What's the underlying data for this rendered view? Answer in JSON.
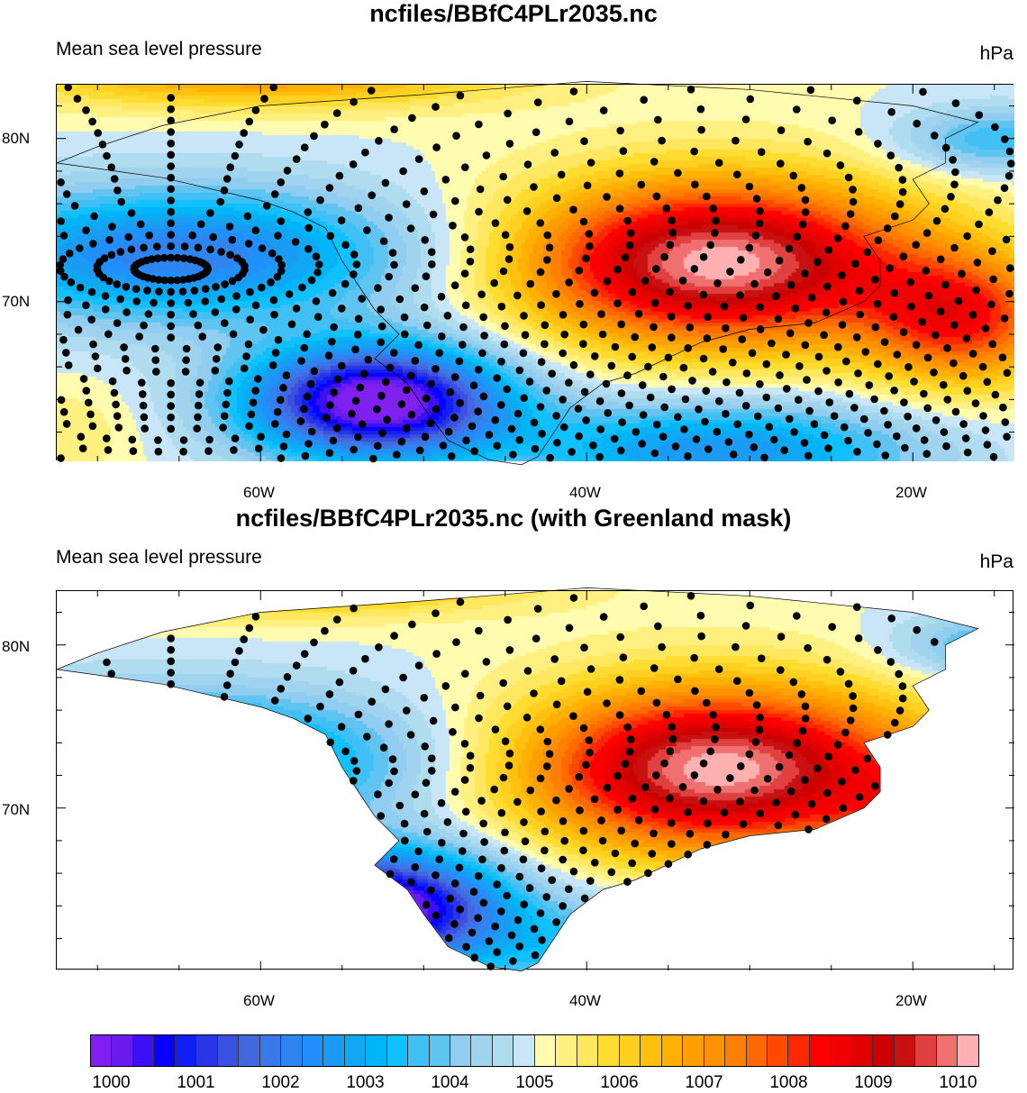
{
  "chart_data": [
    {
      "type": "heatmap",
      "title": "ncfiles/BBfC4PLr2035.nc",
      "left_string": "Mean sea level pressure",
      "right_string": "hPa",
      "x_ticks": [
        "60W",
        "40W",
        "20W"
      ],
      "y_ticks": [
        "80N",
        "70N"
      ],
      "lon_range": [
        -72.5,
        -13.8
      ],
      "lat_range": [
        60.3,
        83.3
      ],
      "features": {
        "low_center": {
          "lon": -53,
          "lat": 64,
          "value": 1000
        },
        "high_center": {
          "lon": -32,
          "lat": 72.5,
          "value": 1010
        }
      },
      "mask": "none",
      "grid_points": "shown"
    },
    {
      "type": "heatmap",
      "title": "ncfiles/BBfC4PLr2035.nc (with Greenland mask)",
      "left_string": "Mean sea level pressure",
      "right_string": "hPa",
      "x_ticks": [
        "60W",
        "40W",
        "20W"
      ],
      "y_ticks": [
        "80N",
        "70N"
      ],
      "lon_range": [
        -72.5,
        -13.8
      ],
      "lat_range": [
        60.3,
        83.3
      ],
      "mask": "Greenland",
      "grid_points": "shown"
    }
  ],
  "colorbar": {
    "labels": [
      "1000",
      "1001",
      "1002",
      "1003",
      "1004",
      "1005",
      "1006",
      "1007",
      "1008",
      "1009",
      "1010"
    ],
    "min": 1000,
    "max": 1010,
    "interval": 0.25,
    "colors": [
      "#8020f0",
      "#6a1cf0",
      "#3b10f5",
      "#0a00ff",
      "#1020f5",
      "#2a35e8",
      "#3a50e0",
      "#4268e0",
      "#3a78ea",
      "#2f85f0",
      "#2090ff",
      "#1a9cf5",
      "#10a8f5",
      "#00b4f8",
      "#10c0ff",
      "#40c0f5",
      "#60c4f0",
      "#90cdf0",
      "#a0d4ee",
      "#b0dcf0",
      "#c8e6f8",
      "#fffcb0",
      "#fff080",
      "#ffe860",
      "#ffdc30",
      "#ffd020",
      "#ffc010",
      "#ffb000",
      "#ffa000",
      "#ff9000",
      "#ff8000",
      "#ff6a00",
      "#ff4a00",
      "#ff2800",
      "#ff0000",
      "#f00000",
      "#e00000",
      "#cc0000",
      "#c81010",
      "#e04040",
      "#f07070",
      "#ffb0b0"
    ]
  }
}
